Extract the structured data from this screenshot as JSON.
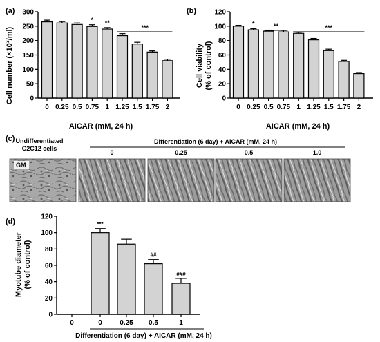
{
  "chart_data": [
    {
      "type": "bar",
      "panel": "(a)",
      "categories": [
        "0",
        "0.25",
        "0.5",
        "0.75",
        "1",
        "1.25",
        "1.5",
        "1.75",
        "2"
      ],
      "values": [
        265,
        261,
        256,
        249,
        240,
        217,
        188,
        160,
        130
      ],
      "errors": [
        6,
        5,
        5,
        6,
        5,
        7,
        6,
        4,
        5
      ],
      "significance": [
        "",
        "",
        "",
        "*",
        "**",
        "***",
        "",
        "",
        ""
      ],
      "ylim": [
        0,
        300
      ],
      "yticks": [
        0,
        50,
        100,
        150,
        200,
        250,
        300
      ],
      "ylabel_main": "Cell number (",
      "ylabel_unit": "×10",
      "ylabel_exp": "3",
      "ylabel_tail": "/ml)",
      "xlabel": "AICAR (mM, 24 h)",
      "grid": false
    },
    {
      "type": "bar",
      "panel": "(b)",
      "categories": [
        "0",
        "0.25",
        "0.5",
        "0.75",
        "1",
        "1.25",
        "1.5",
        "1.75",
        "2"
      ],
      "values": [
        100,
        95,
        93,
        92,
        90,
        81,
        66,
        51,
        34
      ],
      "errors": [
        1.2,
        1.5,
        1.5,
        2,
        1.5,
        2,
        2,
        1.5,
        1.5
      ],
      "significance": [
        "",
        "*",
        "**",
        "",
        "***",
        "",
        "",
        "",
        ""
      ],
      "ylim": [
        0,
        120
      ],
      "yticks": [
        0,
        20,
        40,
        60,
        80,
        100,
        120
      ],
      "ylabel_line1": "Cell viability",
      "ylabel_line2": "(% of control)",
      "xlabel": "AICAR (mM, 24 h)",
      "grid": false
    },
    {
      "type": "bar",
      "panel": "(d)",
      "categories": [
        "0",
        "0",
        "0.25",
        "0.5",
        "1"
      ],
      "values": [
        0,
        100,
        86,
        62,
        38
      ],
      "errors": [
        0,
        5,
        6,
        5,
        6
      ],
      "annotations": [
        "",
        "***",
        "",
        "##",
        "###"
      ],
      "ylim": [
        0,
        120
      ],
      "yticks": [
        0,
        20,
        40,
        60,
        80,
        100,
        120
      ],
      "ylabel_line1": "Myotube diameter",
      "ylabel_line2": "(% of control)",
      "xlabel": "Differentiation (6 day) + AICAR (mM, 24 h)",
      "grid": false
    }
  ],
  "panel_c": {
    "label": "(c)",
    "undiff_line1": "Undifferentiated",
    "undiff_line2": "C2C12 cells",
    "header": "Differentiation (6 day) + AICAR (mM, 24 h)",
    "image_labels": [
      "0",
      "0.25",
      "0.5",
      "1.0"
    ],
    "gm_label": "GM"
  },
  "colors": {
    "bar": "#d3d3d3",
    "ink": "#000000",
    "micro_bg": "#9a9a9a"
  }
}
